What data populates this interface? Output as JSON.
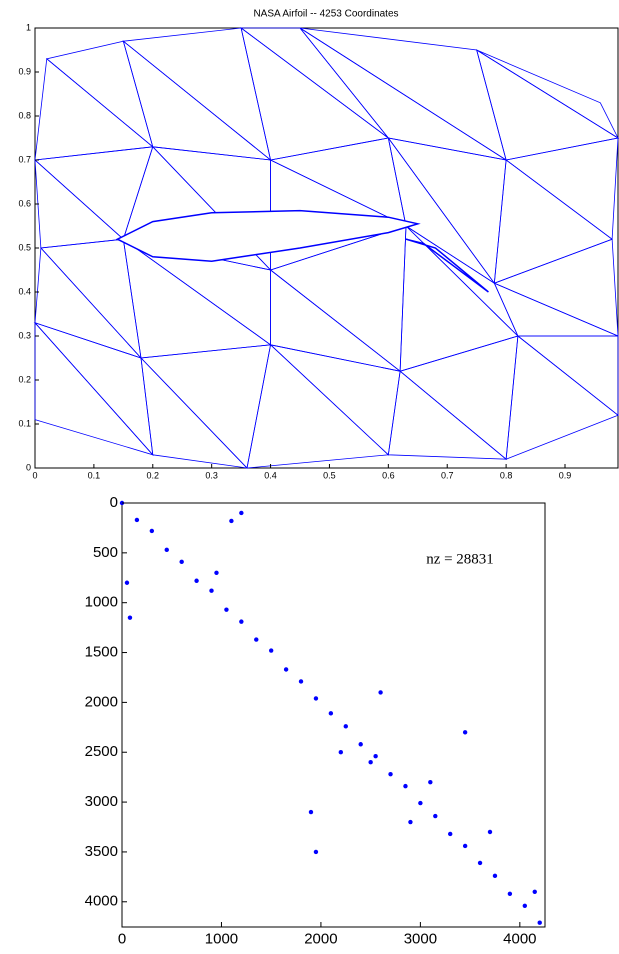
{
  "chart_data": [
    {
      "type": "mesh",
      "title": "NASA Airfoil  --  4253 Coordinates",
      "color": "#0000ff",
      "xlim": [
        0,
        0.99
      ],
      "ylim": [
        0,
        1
      ],
      "xticks": [
        0,
        0.1,
        0.2,
        0.3,
        0.4,
        0.5,
        0.6,
        0.7,
        0.8,
        0.9
      ],
      "yticks": [
        0,
        0.1,
        0.2,
        0.3,
        0.4,
        0.5,
        0.6,
        0.7,
        0.8,
        0.9,
        1
      ],
      "x": [
        0.0,
        0.2,
        0.36,
        0.6,
        0.8,
        0.99,
        0.0,
        0.18,
        0.4,
        0.62,
        0.82,
        0.99,
        0.01,
        0.15,
        0.4,
        0.63,
        0.78,
        0.98,
        0.0,
        0.2,
        0.4,
        0.6,
        0.8,
        0.99,
        0.02,
        0.15,
        0.35,
        0.45,
        0.75,
        0.96
      ],
      "y": [
        0.11,
        0.03,
        0.0,
        0.03,
        0.02,
        0.12,
        0.33,
        0.25,
        0.28,
        0.22,
        0.3,
        0.3,
        0.5,
        0.52,
        0.45,
        0.55,
        0.42,
        0.52,
        0.7,
        0.73,
        0.7,
        0.75,
        0.7,
        0.75,
        0.93,
        0.97,
        1.0,
        1.0,
        0.95,
        0.83
      ],
      "triangles": [
        [
          0,
          1,
          6
        ],
        [
          1,
          7,
          6
        ],
        [
          1,
          2,
          7
        ],
        [
          2,
          8,
          7
        ],
        [
          2,
          3,
          8
        ],
        [
          3,
          9,
          8
        ],
        [
          3,
          4,
          9
        ],
        [
          4,
          10,
          9
        ],
        [
          4,
          5,
          10
        ],
        [
          5,
          11,
          10
        ],
        [
          6,
          7,
          12
        ],
        [
          7,
          13,
          12
        ],
        [
          7,
          8,
          13
        ],
        [
          8,
          14,
          13
        ],
        [
          8,
          9,
          14
        ],
        [
          9,
          15,
          14
        ],
        [
          9,
          10,
          15
        ],
        [
          10,
          16,
          15
        ],
        [
          10,
          11,
          16
        ],
        [
          11,
          17,
          16
        ],
        [
          12,
          13,
          18
        ],
        [
          13,
          19,
          18
        ],
        [
          13,
          14,
          19
        ],
        [
          14,
          20,
          19
        ],
        [
          14,
          15,
          20
        ],
        [
          15,
          21,
          20
        ],
        [
          15,
          16,
          21
        ],
        [
          16,
          22,
          21
        ],
        [
          16,
          17,
          22
        ],
        [
          17,
          23,
          22
        ],
        [
          18,
          19,
          24
        ],
        [
          19,
          25,
          24
        ],
        [
          19,
          20,
          25
        ],
        [
          20,
          26,
          25
        ],
        [
          20,
          21,
          26
        ],
        [
          21,
          27,
          26
        ],
        [
          21,
          22,
          27
        ],
        [
          22,
          28,
          27
        ],
        [
          22,
          23,
          28
        ],
        [
          23,
          29,
          28
        ]
      ],
      "airfoil": {
        "x": [
          0.14,
          0.2,
          0.3,
          0.45,
          0.6,
          0.65,
          0.6,
          0.45,
          0.3,
          0.2
        ],
        "y": [
          0.52,
          0.56,
          0.58,
          0.585,
          0.57,
          0.555,
          0.535,
          0.5,
          0.47,
          0.48
        ]
      },
      "flap": {
        "x": [
          0.63,
          0.68,
          0.77,
          0.74,
          0.66
        ],
        "y": [
          0.52,
          0.5,
          0.4,
          0.43,
          0.51
        ]
      }
    },
    {
      "type": "spy",
      "annotation": "nz = 28831",
      "color": "#0000ff",
      "y_reversed": true,
      "xlim": [
        0,
        4253
      ],
      "ylim": [
        0,
        4253
      ],
      "xticks": [
        0,
        1000,
        2000,
        3000,
        4000
      ],
      "yticks": [
        0,
        500,
        1000,
        1500,
        2000,
        2500,
        3000,
        3500,
        4000
      ],
      "x": [
        0,
        150,
        300,
        450,
        600,
        750,
        900,
        1050,
        1200,
        1350,
        1500,
        1650,
        1800,
        1950,
        2100,
        2250,
        2400,
        2550,
        2700,
        2850,
        3000,
        3150,
        3300,
        3450,
        3600,
        3750,
        3900,
        4050,
        4200,
        1200,
        1100,
        50,
        80,
        1950,
        2600,
        1900,
        3450,
        2500,
        3700,
        3100,
        4150,
        950,
        2200,
        2900
      ],
      "y": [
        0,
        170,
        280,
        470,
        590,
        780,
        880,
        1070,
        1190,
        1370,
        1480,
        1670,
        1790,
        1960,
        2110,
        2240,
        2420,
        2540,
        2720,
        2840,
        3010,
        3140,
        3320,
        3440,
        3610,
        3740,
        3920,
        4040,
        4210,
        100,
        180,
        800,
        1150,
        3500,
        1900,
        3100,
        2300,
        2600,
        3300,
        2800,
        3900,
        700,
        2500,
        3200
      ]
    }
  ]
}
